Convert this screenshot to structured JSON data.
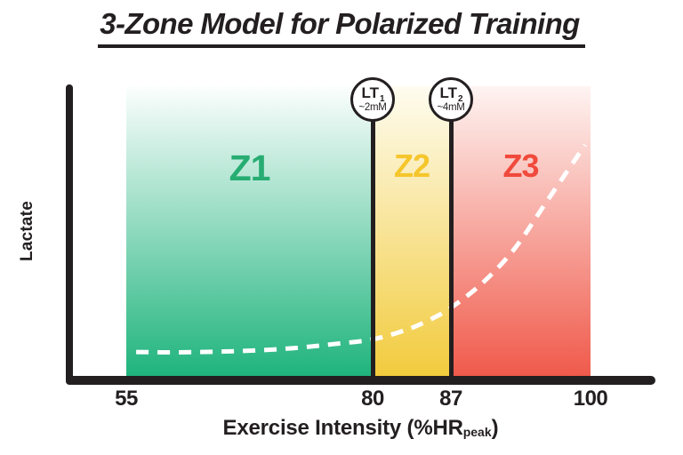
{
  "title": "3-Zone Model for Polarized Training",
  "y_axis_label": "Lactate",
  "x_axis_label": {
    "prefix": "Exercise Intensity (%HR",
    "subscript": "peak",
    "suffix": ")"
  },
  "colors": {
    "text_black": "#231f20",
    "axis_black": "#231f20",
    "curve_white": "#ffffff"
  },
  "chart_data": {
    "type": "line",
    "title": "3-Zone Model for Polarized Training",
    "xlabel": "Exercise Intensity (%HRpeak)",
    "ylabel": "Lactate",
    "x_ticks": [
      "55",
      "80",
      "87",
      "100"
    ],
    "x_tick_values": [
      55,
      80,
      87,
      100
    ],
    "x_range": [
      55,
      100
    ],
    "grid": false,
    "zones": [
      {
        "label": "Z1",
        "x_start": 55,
        "x_end": 80,
        "label_color": "#27ad72",
        "gradient_top": "#fcfefe",
        "gradient_bottom": "#1fb47d"
      },
      {
        "label": "Z2",
        "x_start": 80,
        "x_end": 87,
        "label_color": "#f5c62c",
        "gradient_top": "#fefcf0",
        "gradient_bottom": "#f2cb3d"
      },
      {
        "label": "Z3",
        "x_start": 87,
        "x_end": 100,
        "label_color": "#f04a3c",
        "gradient_top": "#fef4f2",
        "gradient_bottom": "#f05a4b"
      }
    ],
    "thresholds": [
      {
        "name": "LT",
        "subscript": "1",
        "concentration": "~2mM",
        "x": 80
      },
      {
        "name": "LT",
        "subscript": "2",
        "concentration": "~4mM",
        "x": 87
      }
    ],
    "curve": {
      "name": "lactate-curve",
      "style": "dashed",
      "color": "#ffffff",
      "points_x_pctHR": [
        56,
        60,
        64,
        68,
        72,
        76,
        80,
        83,
        85,
        87,
        90,
        93,
        96,
        99.5
      ],
      "points_lactate_mM": [
        1.2,
        1.18,
        1.22,
        1.3,
        1.45,
        1.7,
        2.0,
        2.6,
        3.2,
        4.0,
        5.6,
        7.8,
        10.8,
        14.3
      ]
    }
  }
}
